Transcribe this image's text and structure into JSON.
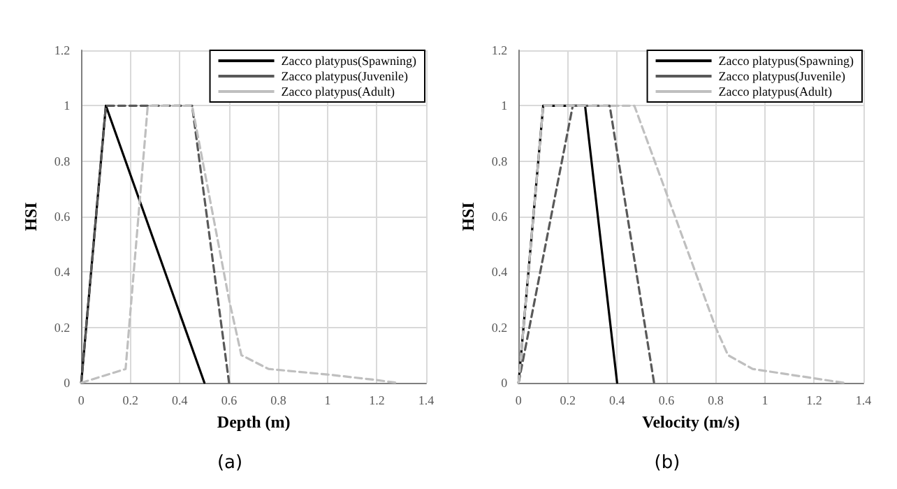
{
  "chart_data": [
    {
      "type": "line",
      "xlabel": "Depth (m)",
      "ylabel": "HSI",
      "annotations": [
        "(a)"
      ],
      "xlim": [
        0,
        1.4
      ],
      "xticks": [
        0,
        0.2,
        0.4,
        0.6,
        0.8,
        1,
        1.2,
        1.4
      ],
      "ylim": [
        0,
        1.2
      ],
      "yticks": [
        0,
        0.2,
        0.4,
        0.6,
        0.8,
        1,
        1.2
      ],
      "grid": true,
      "legend": "top right",
      "series": [
        {
          "name": "Zacco platypus(Spawning)",
          "color": "#000000",
          "line_style": "solid",
          "x": [
            0,
            0.1,
            0.5
          ],
          "values": [
            0,
            1,
            0
          ]
        },
        {
          "name": "Zacco platypus(Juvenile)",
          "color": "#595959",
          "line_style": "dashed",
          "x": [
            0,
            0.1,
            0.45,
            0.6
          ],
          "values": [
            0,
            1,
            1,
            0
          ]
        },
        {
          "name": "Zacco platypus(Adult)",
          "color": "#bfbfbf",
          "line_style": "dashed",
          "x": [
            0,
            0.18,
            0.27,
            0.45,
            0.6,
            0.65,
            0.76,
            1,
            1.2,
            1.28
          ],
          "values": [
            0,
            0.05,
            1,
            1,
            0.3,
            0.1,
            0.05,
            0.03,
            0.01,
            0
          ]
        }
      ]
    },
    {
      "type": "line",
      "xlabel": "Velocity (m/s)",
      "ylabel": "HSI",
      "annotations": [
        "(b)"
      ],
      "xlim": [
        0,
        1.4
      ],
      "xticks": [
        0,
        0.2,
        0.4,
        0.6,
        0.8,
        1,
        1.2,
        1.4
      ],
      "ylim": [
        0,
        1.2
      ],
      "yticks": [
        0,
        0.2,
        0.4,
        0.6,
        0.8,
        1,
        1.2
      ],
      "grid": true,
      "legend": "top right",
      "series": [
        {
          "name": "Zacco platypus(Spawning)",
          "color": "#000000",
          "line_style": "solid",
          "x": [
            0,
            0.1,
            0.27,
            0.4
          ],
          "values": [
            0,
            1,
            1,
            0
          ]
        },
        {
          "name": "Zacco platypus(Juvenile)",
          "color": "#595959",
          "line_style": "dashed",
          "x": [
            0,
            0.22,
            0.37,
            0.55
          ],
          "values": [
            0,
            1,
            1,
            0
          ]
        },
        {
          "name": "Zacco platypus(Adult)",
          "color": "#bfbfbf",
          "line_style": "dashed",
          "x": [
            0,
            0.1,
            0.47,
            0.8,
            0.85,
            0.95,
            1.32
          ],
          "values": [
            0,
            1,
            1,
            0.2,
            0.1,
            0.05,
            0
          ]
        }
      ]
    }
  ]
}
